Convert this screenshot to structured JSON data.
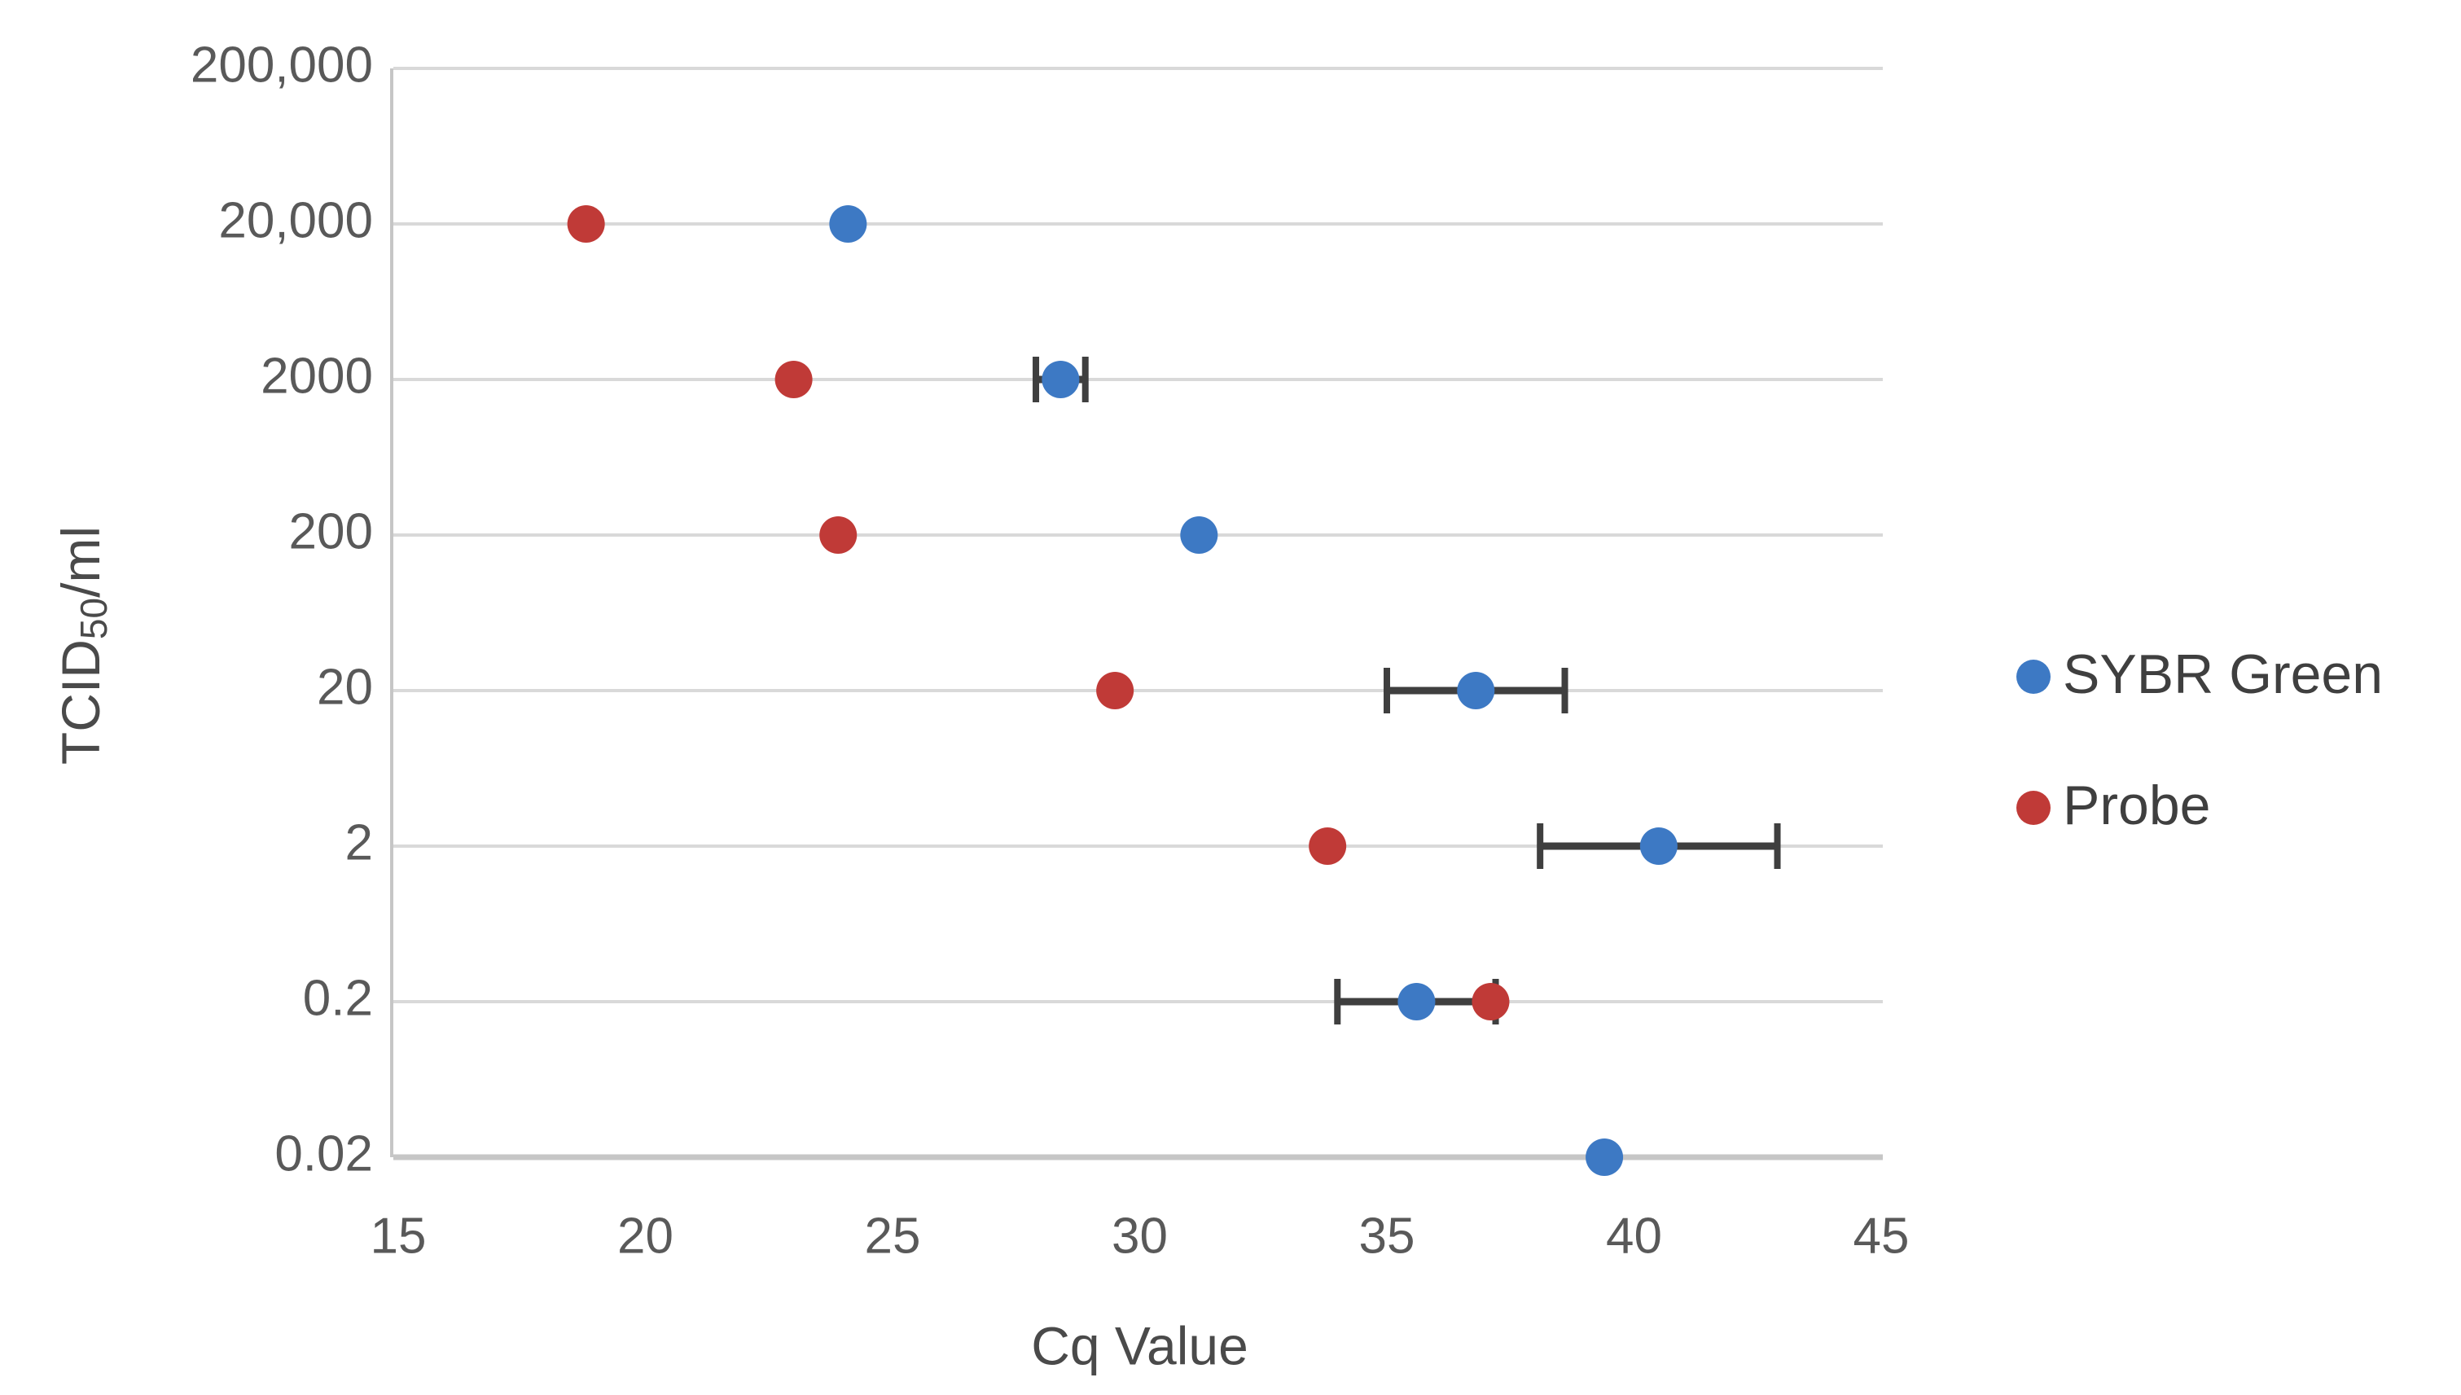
{
  "page": {
    "background": "#ffffff"
  },
  "chart_data": {
    "type": "scatter",
    "orientation": "horizontal-category-y",
    "title": "",
    "xlabel": "Cq Value",
    "ylabel": {
      "prefix": "TCID",
      "subscript": "50",
      "suffix": "/ml"
    },
    "x_axis": {
      "min": 15,
      "max": 45,
      "ticks": [
        15,
        20,
        25,
        30,
        35,
        40,
        45
      ],
      "tick_labels": [
        "15",
        "20",
        "25",
        "30",
        "35",
        "40",
        "45"
      ]
    },
    "y_axis": {
      "categories_top_to_bottom": [
        "200,000",
        "20,000",
        "2000",
        "200",
        "20",
        "2",
        "0.2",
        "0.02"
      ]
    },
    "grid": "horizontal-only",
    "legend": {
      "position": "right",
      "entries": [
        {
          "label": "SYBR Green",
          "color": "#3D79C4"
        },
        {
          "label": "Probe",
          "color": "#C03A37"
        }
      ]
    },
    "series": [
      {
        "name": "SYBR Green",
        "color": "#3D79C4",
        "points": [
          {
            "category": "20,000",
            "x": 24.1
          },
          {
            "category": "2000",
            "x": 28.4,
            "err": 0.5
          },
          {
            "category": "200",
            "x": 31.2
          },
          {
            "category": "20",
            "x": 36.8,
            "err": 1.8
          },
          {
            "category": "2",
            "x": 40.5,
            "err": 2.4
          },
          {
            "category": "0.2",
            "x": 35.6,
            "err": 1.6
          },
          {
            "category": "0.02",
            "x": 39.4
          }
        ]
      },
      {
        "name": "Probe",
        "color": "#C03A37",
        "points": [
          {
            "category": "20,000",
            "x": 18.8
          },
          {
            "category": "2000",
            "x": 23.0
          },
          {
            "category": "200",
            "x": 23.9
          },
          {
            "category": "20",
            "x": 29.5
          },
          {
            "category": "2",
            "x": 33.8
          },
          {
            "category": "0.2",
            "x": 37.1
          }
        ]
      }
    ],
    "style": {
      "gridline_color": "#D9D9D9",
      "axis_line_color": "#C6C6C6",
      "tick_label_color": "#595959",
      "axis_title_color": "#4A4A4A",
      "legend_text_color": "#3F3F3F",
      "error_bar_color": "#3F3F3F",
      "marker_radius": 23,
      "legend_marker_radius": 21
    }
  }
}
